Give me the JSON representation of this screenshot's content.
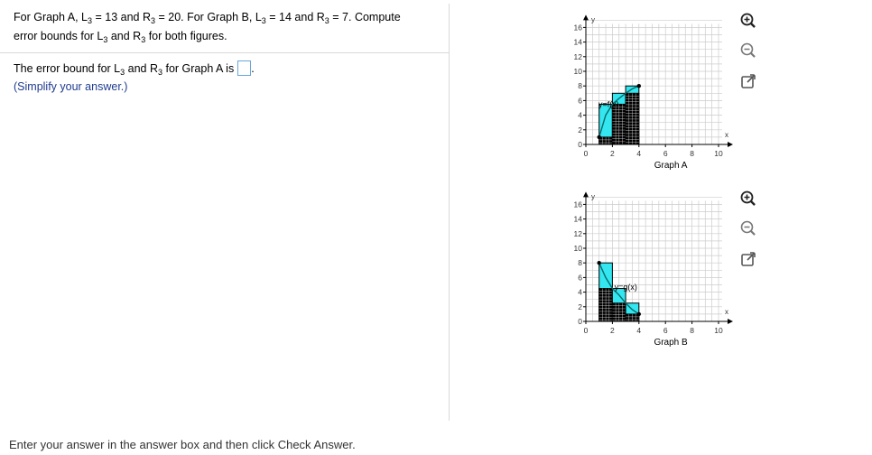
{
  "question": {
    "line1_a": "For Graph A, L",
    "line1_sub1": "3",
    "line1_b": " = 13 and R",
    "line1_sub2": "3",
    "line1_c": " = 20. For Graph B, L",
    "line1_sub3": "3",
    "line1_d": " = 14 and R",
    "line1_sub4": "3",
    "line1_e": " = 7. Compute",
    "line2_a": "error bounds for L",
    "line2_sub1": "3",
    "line2_b": " and R",
    "line2_sub2": "3",
    "line2_c": " for both figures."
  },
  "answer": {
    "prefix_a": "The error bound for L",
    "sub1": "3",
    "prefix_b": " and R",
    "sub2": "3",
    "prefix_c": " for Graph A is",
    "value": "",
    "suffix": ".",
    "hint": "(Simplify your answer.)"
  },
  "footer": "Enter your answer in the answer box and then click Check Answer.",
  "graphs": [
    {
      "caption": "Graph A",
      "func_label": "y=f(x)",
      "x_axis_label": "x",
      "y_axis_label": "y",
      "x_ticks": [
        "0",
        "2",
        "4",
        "6",
        "8",
        "10"
      ],
      "y_ticks": [
        "0",
        "2",
        "4",
        "6",
        "8",
        "10",
        "12",
        "14",
        "16"
      ]
    },
    {
      "caption": "Graph B",
      "func_label": "y=g(x)",
      "x_axis_label": "x",
      "y_axis_label": "y",
      "x_ticks": [
        "0",
        "2",
        "4",
        "6",
        "8",
        "10"
      ],
      "y_ticks": [
        "0",
        "2",
        "4",
        "6",
        "8",
        "10",
        "12",
        "14",
        "16"
      ]
    }
  ],
  "chart_data": [
    {
      "type": "area",
      "title": "Graph A",
      "function": "y=f(x)",
      "xlim": [
        0,
        10
      ],
      "ylim": [
        0,
        16
      ],
      "curve": [
        [
          1,
          1
        ],
        [
          1.5,
          4
        ],
        [
          2,
          5.5
        ],
        [
          2.5,
          6.3
        ],
        [
          3,
          7
        ],
        [
          3.5,
          7.6
        ],
        [
          4,
          8
        ]
      ],
      "intervals": [
        1,
        2,
        3,
        4
      ],
      "left_rect_heights": [
        1,
        5.5,
        7
      ],
      "right_rect_heights": [
        5.5,
        7,
        8
      ],
      "endpoints": [
        [
          1,
          1
        ],
        [
          4,
          8
        ]
      ],
      "grid": true
    },
    {
      "type": "area",
      "title": "Graph B",
      "function": "y=g(x)",
      "xlim": [
        0,
        10
      ],
      "ylim": [
        0,
        16
      ],
      "curve": [
        [
          1,
          8
        ],
        [
          1.5,
          6
        ],
        [
          2,
          4.5
        ],
        [
          2.5,
          3.6
        ],
        [
          3,
          2.5
        ],
        [
          3.5,
          1.6
        ],
        [
          4,
          1
        ]
      ],
      "intervals": [
        1,
        2,
        3,
        4
      ],
      "left_rect_heights": [
        8,
        4.5,
        2.5
      ],
      "right_rect_heights": [
        4.5,
        2.5,
        1
      ],
      "endpoints": [
        [
          1,
          8
        ],
        [
          4,
          1
        ]
      ],
      "grid": true
    }
  ],
  "colors": {
    "cyan": "#33e6f0",
    "black": "#000000",
    "grid": "#cccccc",
    "hint": "#1f3b8f"
  },
  "tools": [
    {
      "icon": "zoom-in-icon"
    },
    {
      "icon": "zoom-out-icon"
    },
    {
      "icon": "open-new-window-icon"
    }
  ]
}
